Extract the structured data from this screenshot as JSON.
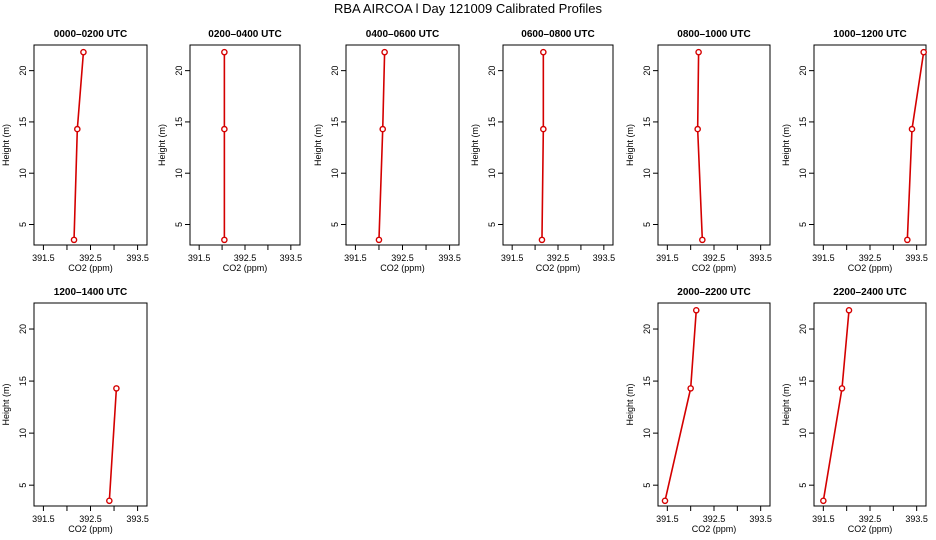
{
  "title": "RBA AIRCOA l  Day 121009  Calibrated Profiles",
  "colors": {
    "line": "#d40000",
    "axis": "#000000"
  },
  "chart_data": [
    {
      "type": "line",
      "title": "0000–0200 UTC",
      "xlabel": "CO2 (ppm)",
      "ylabel": "Height (m)",
      "xlim": [
        391.3,
        393.7
      ],
      "ylim": [
        3,
        22.5
      ],
      "xticks": [
        "391.5",
        "392.5",
        "393.5"
      ],
      "yticks": [
        "5",
        "10",
        "15",
        "20"
      ],
      "x": [
        392.15,
        392.22,
        392.35
      ],
      "y": [
        3.5,
        14.3,
        21.8
      ]
    },
    {
      "type": "line",
      "title": "0200–0400 UTC",
      "xlabel": "CO2 (ppm)",
      "ylabel": "Height (m)",
      "xlim": [
        391.3,
        393.7
      ],
      "ylim": [
        3,
        22.5
      ],
      "xticks": [
        "391.5",
        "392.5",
        "393.5"
      ],
      "yticks": [
        "5",
        "10",
        "15",
        "20"
      ],
      "x": [
        392.05,
        392.05,
        392.05
      ],
      "y": [
        3.5,
        14.3,
        21.8
      ]
    },
    {
      "type": "line",
      "title": "0400–0600 UTC",
      "xlabel": "CO2 (ppm)",
      "ylabel": "Height (m)",
      "xlim": [
        391.3,
        393.7
      ],
      "ylim": [
        3,
        22.5
      ],
      "xticks": [
        "391.5",
        "392.5",
        "393.5"
      ],
      "yticks": [
        "5",
        "10",
        "15",
        "20"
      ],
      "x": [
        392.0,
        392.08,
        392.12
      ],
      "y": [
        3.5,
        14.3,
        21.8
      ]
    },
    {
      "type": "line",
      "title": "0600–0800 UTC",
      "xlabel": "CO2 (ppm)",
      "ylabel": "Height (m)",
      "xlim": [
        391.3,
        393.7
      ],
      "ylim": [
        3,
        22.5
      ],
      "xticks": [
        "391.5",
        "392.5",
        "393.5"
      ],
      "yticks": [
        "5",
        "10",
        "15",
        "20"
      ],
      "x": [
        392.15,
        392.18,
        392.18
      ],
      "y": [
        3.5,
        14.3,
        21.8
      ]
    },
    {
      "type": "line",
      "title": "0800–1000 UTC",
      "xlabel": "CO2 (ppm)",
      "ylabel": "Height (m)",
      "xlim": [
        391.3,
        393.7
      ],
      "ylim": [
        3,
        22.5
      ],
      "xticks": [
        "391.5",
        "392.5",
        "393.5"
      ],
      "yticks": [
        "5",
        "10",
        "15",
        "20"
      ],
      "x": [
        392.25,
        392.15,
        392.17
      ],
      "y": [
        3.5,
        14.3,
        21.8
      ]
    },
    {
      "type": "line",
      "title": "1000–1200 UTC",
      "xlabel": "CO2 (ppm)",
      "ylabel": "Height (m)",
      "xlim": [
        391.3,
        393.7
      ],
      "ylim": [
        3,
        22.5
      ],
      "xticks": [
        "391.5",
        "392.5",
        "393.5"
      ],
      "yticks": [
        "5",
        "10",
        "15",
        "20"
      ],
      "x": [
        393.3,
        393.4,
        393.65
      ],
      "y": [
        3.5,
        14.3,
        21.8
      ]
    },
    {
      "type": "line",
      "title": "1200–1400 UTC",
      "xlabel": "CO2 (ppm)",
      "ylabel": "Height (m)",
      "xlim": [
        391.3,
        393.7
      ],
      "ylim": [
        3,
        22.5
      ],
      "xticks": [
        "391.5",
        "392.5",
        "393.5"
      ],
      "yticks": [
        "5",
        "10",
        "15",
        "20"
      ],
      "x": [
        392.9,
        393.05
      ],
      "y": [
        3.5,
        14.3
      ]
    },
    {
      "type": "line",
      "title": "2000–2200 UTC",
      "xlabel": "CO2 (ppm)",
      "ylabel": "Height (m)",
      "xlim": [
        391.3,
        393.7
      ],
      "ylim": [
        3,
        22.5
      ],
      "xticks": [
        "391.5",
        "392.5",
        "393.5"
      ],
      "yticks": [
        "5",
        "10",
        "15",
        "20"
      ],
      "x": [
        391.45,
        392.0,
        392.12
      ],
      "y": [
        3.5,
        14.3,
        21.8
      ]
    },
    {
      "type": "line",
      "title": "2200–2400 UTC",
      "xlabel": "CO2 (ppm)",
      "ylabel": "Height (m)",
      "xlim": [
        391.3,
        393.7
      ],
      "ylim": [
        3,
        22.5
      ],
      "xticks": [
        "391.5",
        "392.5",
        "393.5"
      ],
      "yticks": [
        "5",
        "10",
        "15",
        "20"
      ],
      "x": [
        391.5,
        391.9,
        392.05
      ],
      "y": [
        3.5,
        14.3,
        21.8
      ]
    }
  ]
}
